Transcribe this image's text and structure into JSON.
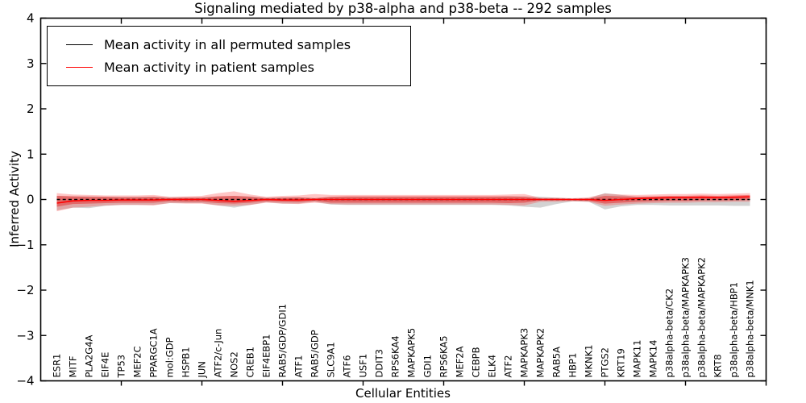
{
  "figure": {
    "title": "Signaling mediated by p38-alpha and p38-beta -- 292 samples",
    "xlabel": "Cellular Entities",
    "ylabel": "Inferred Activity",
    "background_color": "#ffffff",
    "axis_color": "#000000"
  },
  "legend": {
    "position": "upper left",
    "items": [
      {
        "label": "Mean activity in all permuted samples",
        "color": "#000000"
      },
      {
        "label": "Mean activity in patient samples",
        "color": "#ff0000"
      }
    ]
  },
  "chart_data": {
    "type": "line",
    "title": "Signaling mediated by p38-alpha and p38-beta -- 292 samples",
    "xlabel": "Cellular Entities",
    "ylabel": "Inferred Activity",
    "ylim": [
      -4,
      4
    ],
    "yticks": [
      4,
      3,
      2,
      1,
      0,
      -1,
      -2,
      -3,
      -4
    ],
    "grid": false,
    "legend_position": "upper left",
    "categories": [
      "ESR1",
      "MITF",
      "PLA2G4A",
      "EIF4E",
      "TP53",
      "MEF2C",
      "PPARGC1A",
      "mol:GDP",
      "HSPB1",
      "JUN",
      "ATF2/c-Jun",
      "NOS2",
      "CREB1",
      "EIF4EBP1",
      "RAB5/GDP/GDI1",
      "ATF1",
      "RAB5/GDP",
      "SLC9A1",
      "ATF6",
      "USF1",
      "DDIT3",
      "RPS6KA4",
      "MAPKAPK5",
      "GDI1",
      "RPS6KA5",
      "MEF2A",
      "CEBPB",
      "ELK4",
      "ATF2",
      "MAPKAPK3",
      "MAPKAPK2",
      "RAB5A",
      "HBP1",
      "MKNK1",
      "PTGS2",
      "KRT19",
      "MAPK11",
      "MAPK14",
      "p38alpha-beta/CK2",
      "p38alpha-beta/MAPKAPK3",
      "p38alpha-beta/MAPKAPK2",
      "KRT8",
      "p38alpha-beta/HBP1",
      "p38alpha-beta/MNK1"
    ],
    "series": [
      {
        "name": "Mean activity in all permuted samples",
        "color": "#000000",
        "line_style": "dashed",
        "values": [
          0,
          0,
          0,
          0,
          0,
          0,
          0,
          0,
          0,
          0,
          0,
          0,
          0,
          0,
          0,
          0,
          0,
          0,
          0,
          0,
          0,
          0,
          0,
          0,
          0,
          0,
          0,
          0,
          0,
          0,
          0,
          0,
          0,
          0,
          0,
          0,
          0,
          0,
          0,
          0,
          0,
          0,
          0,
          0
        ]
      },
      {
        "name": "Mean activity in patient samples",
        "color": "#ff0000",
        "line_style": "solid",
        "values": [
          -0.08,
          -0.03,
          -0.02,
          -0.02,
          -0.01,
          -0.01,
          -0.01,
          0,
          0,
          0,
          -0.02,
          -0.04,
          -0.02,
          0,
          -0.01,
          -0.01,
          0,
          0,
          0,
          0,
          0,
          0,
          0,
          0,
          0,
          0,
          0,
          0,
          0,
          0,
          0,
          0,
          0,
          0,
          -0.02,
          0,
          0.02,
          0.03,
          0.04,
          0.04,
          0.05,
          0.04,
          0.05,
          0.06
        ]
      }
    ],
    "bands": [
      {
        "name": "permuted-samples-range",
        "color": "rgba(128,128,128,0.35)",
        "upper": [
          0.08,
          0.07,
          0.07,
          0.06,
          0.06,
          0.06,
          0.06,
          0.05,
          0.05,
          0.05,
          0.07,
          0.08,
          0.07,
          0.04,
          0.05,
          0.05,
          0.03,
          0.06,
          0.06,
          0.06,
          0.06,
          0.06,
          0.06,
          0.06,
          0.06,
          0.06,
          0.06,
          0.06,
          0.07,
          0.07,
          0.06,
          0.04,
          0.02,
          0.03,
          0.14,
          0.1,
          0.06,
          0.06,
          0.06,
          0.06,
          0.06,
          0.06,
          0.06,
          0.07
        ],
        "lower": [
          -0.24,
          -0.18,
          -0.19,
          -0.14,
          -0.12,
          -0.12,
          -0.12,
          -0.08,
          -0.08,
          -0.08,
          -0.13,
          -0.18,
          -0.12,
          -0.06,
          -0.09,
          -0.09,
          -0.05,
          -0.11,
          -0.12,
          -0.12,
          -0.12,
          -0.12,
          -0.12,
          -0.12,
          -0.12,
          -0.12,
          -0.12,
          -0.12,
          -0.13,
          -0.16,
          -0.18,
          -0.1,
          -0.04,
          -0.05,
          -0.22,
          -0.15,
          -0.12,
          -0.12,
          -0.13,
          -0.13,
          -0.13,
          -0.13,
          -0.14,
          -0.14
        ]
      },
      {
        "name": "patient-samples-range-outer",
        "color": "rgba(255,45,45,0.28)",
        "upper": [
          0.14,
          0.11,
          0.1,
          0.09,
          0.09,
          0.09,
          0.1,
          0.06,
          0.07,
          0.08,
          0.14,
          0.18,
          0.11,
          0.06,
          0.08,
          0.09,
          0.12,
          0.1,
          0.1,
          0.1,
          0.1,
          0.1,
          0.1,
          0.1,
          0.1,
          0.1,
          0.1,
          0.1,
          0.11,
          0.12,
          0.04,
          0.04,
          0.03,
          0.05,
          0.13,
          0.11,
          0.1,
          0.11,
          0.12,
          0.12,
          0.13,
          0.12,
          0.13,
          0.14
        ],
        "lower": [
          -0.26,
          -0.18,
          -0.16,
          -0.13,
          -0.12,
          -0.12,
          -0.13,
          -0.08,
          -0.09,
          -0.09,
          -0.13,
          -0.14,
          -0.12,
          -0.07,
          -0.09,
          -0.1,
          -0.07,
          -0.1,
          -0.11,
          -0.11,
          -0.11,
          -0.11,
          -0.11,
          -0.11,
          -0.11,
          -0.11,
          -0.11,
          -0.11,
          -0.12,
          -0.13,
          -0.05,
          -0.05,
          -0.04,
          -0.05,
          -0.14,
          -0.11,
          -0.09,
          -0.08,
          -0.07,
          -0.07,
          -0.06,
          -0.06,
          -0.05,
          -0.05
        ]
      },
      {
        "name": "patient-samples-range-inner",
        "color": "rgba(230,30,30,0.45)",
        "upper": [
          0.08,
          0.07,
          0.06,
          0.06,
          0.05,
          0.05,
          0.06,
          0.03,
          0.04,
          0.04,
          0.07,
          0.08,
          0.06,
          0.03,
          0.04,
          0.05,
          0.03,
          0.06,
          0.07,
          0.07,
          0.07,
          0.07,
          0.07,
          0.07,
          0.07,
          0.07,
          0.07,
          0.07,
          0.07,
          0.06,
          0.02,
          0.02,
          0.01,
          0.02,
          0.08,
          0.07,
          0.06,
          0.07,
          0.08,
          0.08,
          0.09,
          0.08,
          0.09,
          0.1
        ],
        "lower": [
          -0.16,
          -0.1,
          -0.09,
          -0.08,
          -0.07,
          -0.07,
          -0.07,
          -0.04,
          -0.05,
          -0.05,
          -0.08,
          -0.09,
          -0.07,
          -0.04,
          -0.05,
          -0.06,
          -0.03,
          -0.07,
          -0.07,
          -0.07,
          -0.07,
          -0.07,
          -0.07,
          -0.07,
          -0.07,
          -0.07,
          -0.07,
          -0.07,
          -0.08,
          -0.07,
          -0.02,
          -0.02,
          -0.02,
          -0.03,
          -0.09,
          -0.07,
          -0.05,
          -0.04,
          -0.03,
          -0.03,
          -0.02,
          -0.02,
          -0.02,
          -0.01
        ]
      }
    ]
  }
}
